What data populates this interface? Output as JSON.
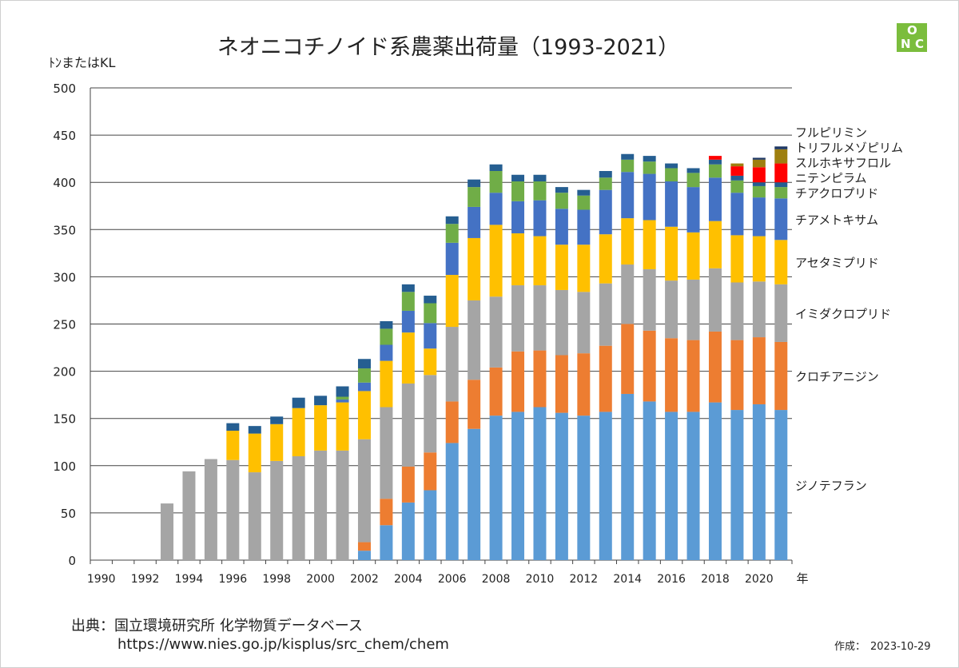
{
  "chart_data": {
    "type": "bar",
    "stacked": true,
    "title": "ネオニコチノイド系農薬出荷量（1993-2021）",
    "ylabel": "ﾄﾝまたはKL",
    "xlabel": "年",
    "ylim": [
      0,
      500
    ],
    "yticks": [
      0,
      50,
      100,
      150,
      200,
      250,
      300,
      350,
      400,
      450,
      500
    ],
    "grid": "horizontal",
    "legend": "right, labels beside last bar",
    "x": [
      1990,
      1991,
      1992,
      1993,
      1994,
      1995,
      1996,
      1997,
      1998,
      1999,
      2000,
      2001,
      2002,
      2003,
      2004,
      2005,
      2006,
      2007,
      2008,
      2009,
      2010,
      2011,
      2012,
      2013,
      2014,
      2015,
      2016,
      2017,
      2018,
      2019,
      2020,
      2021
    ],
    "xticklabels": [
      "1990",
      "1992",
      "1994",
      "1996",
      "1998",
      "2000",
      "2002",
      "2004",
      "2006",
      "2008",
      "2010",
      "2012",
      "2014",
      "2016",
      "2018",
      "2020"
    ],
    "series": [
      {
        "name": "ジノテフラン",
        "color": "#5b9bd5",
        "values": [
          0,
          0,
          0,
          0,
          0,
          0,
          0,
          0,
          0,
          0,
          0,
          0,
          10,
          37,
          61,
          74,
          124,
          139,
          153,
          157,
          162,
          156,
          153,
          157,
          176,
          168,
          157,
          157,
          167,
          159,
          165,
          159
        ]
      },
      {
        "name": "クロチアニジン",
        "color": "#ed7d31",
        "values": [
          0,
          0,
          0,
          0,
          0,
          0,
          0,
          0,
          0,
          0,
          0,
          0,
          9,
          28,
          38,
          40,
          44,
          52,
          51,
          64,
          60,
          61,
          66,
          70,
          74,
          75,
          78,
          76,
          75,
          74,
          71,
          72
        ]
      },
      {
        "name": "イミダクロプリド",
        "color": "#a5a5a5",
        "values": [
          0,
          0,
          0,
          60,
          94,
          107,
          106,
          93,
          105,
          110,
          116,
          116,
          109,
          97,
          88,
          82,
          79,
          84,
          75,
          70,
          69,
          69,
          65,
          66,
          63,
          65,
          61,
          64,
          67,
          61,
          59,
          61
        ]
      },
      {
        "name": "アセタミプリド",
        "color": "#ffc000",
        "values": [
          0,
          0,
          0,
          0,
          0,
          0,
          31,
          41,
          39,
          51,
          48,
          51,
          51,
          49,
          54,
          28,
          55,
          66,
          76,
          55,
          52,
          48,
          50,
          52,
          49,
          52,
          57,
          50,
          50,
          50,
          48,
          47
        ]
      },
      {
        "name": "チアメトキサム",
        "color": "#4472c4",
        "values": [
          0,
          0,
          0,
          0,
          0,
          0,
          0,
          0,
          0,
          0,
          0,
          3,
          9,
          17,
          23,
          27,
          34,
          33,
          34,
          34,
          38,
          38,
          37,
          47,
          49,
          49,
          48,
          48,
          46,
          45,
          41,
          44
        ]
      },
      {
        "name": "チアクロプリド",
        "color": "#70ad47",
        "values": [
          0,
          0,
          0,
          0,
          0,
          0,
          0,
          0,
          0,
          0,
          0,
          3,
          15,
          17,
          20,
          21,
          20,
          21,
          23,
          21,
          20,
          17,
          15,
          13,
          13,
          13,
          14,
          15,
          14,
          13,
          12,
          12
        ]
      },
      {
        "name": "ニテンピラム",
        "color": "#255e91",
        "values": [
          0,
          0,
          0,
          0,
          0,
          0,
          8,
          8,
          8,
          11,
          10,
          11,
          10,
          8,
          8,
          8,
          8,
          8,
          7,
          7,
          7,
          6,
          6,
          7,
          6,
          6,
          5,
          5,
          5,
          5,
          4,
          5
        ]
      },
      {
        "name": "スルホキサフロル",
        "color": "#ff0000",
        "values": [
          0,
          0,
          0,
          0,
          0,
          0,
          0,
          0,
          0,
          0,
          0,
          0,
          0,
          0,
          0,
          0,
          0,
          0,
          0,
          0,
          0,
          0,
          0,
          0,
          0,
          0,
          0,
          0,
          4,
          10,
          16,
          20
        ]
      },
      {
        "name": "トリフルメゾピリム",
        "color": "#9e7f0f",
        "values": [
          0,
          0,
          0,
          0,
          0,
          0,
          0,
          0,
          0,
          0,
          0,
          0,
          0,
          0,
          0,
          0,
          0,
          0,
          0,
          0,
          0,
          0,
          0,
          0,
          0,
          0,
          0,
          0,
          0,
          3,
          8,
          15
        ]
      },
      {
        "name": "フルピリミン",
        "color": "#1f3864",
        "values": [
          0,
          0,
          0,
          0,
          0,
          0,
          0,
          0,
          0,
          0,
          0,
          0,
          0,
          0,
          0,
          0,
          0,
          0,
          0,
          0,
          0,
          0,
          0,
          0,
          0,
          0,
          0,
          0,
          0,
          0,
          2,
          3
        ]
      }
    ]
  },
  "logo": {
    "letters": [
      "O",
      "N",
      "C"
    ],
    "color": "#7bbd3d"
  },
  "source": {
    "line1": "出典：国立環境研究所 化学物質データベース",
    "line2": "https://www.nies.go.jp/kisplus/src_chem/chem"
  },
  "created": {
    "label": "作成：",
    "date": "2023-10-29"
  }
}
